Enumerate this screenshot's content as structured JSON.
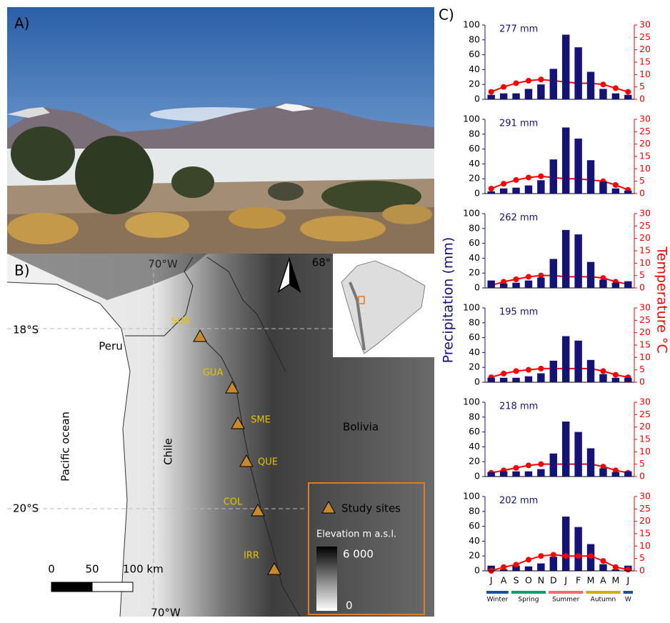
{
  "panels": {
    "a_label": "A)",
    "b_label": "B)",
    "c_label": "C)"
  },
  "map": {
    "countries": [
      "Peru",
      "Chile",
      "Bolivia"
    ],
    "ocean": "Pacific ocean",
    "lon_labels": [
      "70°W",
      "68°",
      "70°W"
    ],
    "lat_labels": [
      "18°S",
      "20°S"
    ],
    "sites": [
      "SUR",
      "GUA",
      "SME",
      "QUE",
      "COL",
      "IRR"
    ],
    "legend": {
      "sites": "Study sites",
      "elevation": "Elevation m a.s.l.",
      "max": "6 000",
      "min": "0"
    },
    "scale": [
      "0",
      "50",
      "100 km"
    ]
  },
  "panel_c": {
    "y_label": "Precipitation (mm)",
    "y2_label": "Temperature °C",
    "seasons": [
      {
        "label": "Winter",
        "color": "#1f4e9a"
      },
      {
        "label": "Spring",
        "color": "#1a9a6c"
      },
      {
        "label": "Summer",
        "color": "#e57373"
      },
      {
        "label": "Autumn",
        "color": "#c9b000"
      },
      {
        "label": "W",
        "color": "#1f4e9a"
      }
    ]
  },
  "chart_data": [
    {
      "type": "bar",
      "annotation": "277 mm",
      "ylim": [
        0,
        100
      ],
      "yticks": [
        0,
        20,
        40,
        60,
        80,
        100
      ],
      "y2lim": [
        0,
        30
      ],
      "y2ticks": [
        0,
        5,
        10,
        15,
        20,
        25,
        30
      ],
      "series": [
        {
          "color": "#15137a",
          "values": [
            6,
            8,
            8,
            14,
            20,
            41,
            87,
            70,
            37,
            14,
            8,
            6
          ]
        },
        {
          "type": "line",
          "axis": "y2",
          "color": "#ff0000",
          "values": [
            3,
            5,
            6.5,
            7.5,
            8,
            7.5,
            7,
            6.5,
            6.5,
            6,
            4.5,
            3
          ]
        }
      ]
    },
    {
      "type": "bar",
      "annotation": "291 mm",
      "ylim": [
        0,
        100
      ],
      "yticks": [
        0,
        20,
        40,
        60,
        80,
        100
      ],
      "y2lim": [
        0,
        30
      ],
      "y2ticks": [
        0,
        5,
        10,
        15,
        20,
        25,
        30
      ],
      "series": [
        {
          "color": "#15137a",
          "values": [
            3,
            7,
            8,
            11,
            18,
            46,
            89,
            74,
            45,
            16,
            7,
            4
          ]
        },
        {
          "type": "line",
          "axis": "y2",
          "color": "#ff0000",
          "values": [
            2,
            4,
            5.5,
            6.5,
            7,
            6.5,
            6,
            6,
            5.5,
            5,
            3.5,
            1.5
          ]
        }
      ]
    },
    {
      "type": "bar",
      "annotation": "262 mm",
      "ylim": [
        0,
        100
      ],
      "yticks": [
        0,
        20,
        40,
        60,
        80,
        100
      ],
      "y2lim": [
        0,
        30
      ],
      "y2ticks": [
        0,
        5,
        10,
        15,
        20,
        25,
        30
      ],
      "series": [
        {
          "color": "#15137a",
          "values": [
            10,
            6,
            7,
            10,
            14,
            39,
            78,
            72,
            35,
            11,
            7,
            9
          ]
        },
        {
          "type": "line",
          "axis": "y2",
          "color": "#ff0000",
          "values": [
            1,
            2.5,
            3.5,
            4.5,
            5,
            5,
            4.5,
            4.5,
            4.5,
            4,
            2.5,
            1.5
          ]
        }
      ]
    },
    {
      "type": "bar",
      "annotation": "195 mm",
      "ylim": [
        0,
        100
      ],
      "yticks": [
        0,
        20,
        40,
        60,
        80,
        100
      ],
      "y2lim": [
        0,
        30
      ],
      "y2ticks": [
        0,
        5,
        10,
        15,
        20,
        25,
        30
      ],
      "series": [
        {
          "color": "#15137a",
          "values": [
            6,
            6,
            6,
            8,
            12,
            29,
            62,
            56,
            30,
            11,
            6,
            6
          ]
        },
        {
          "type": "line",
          "axis": "y2",
          "color": "#ff0000",
          "values": [
            2,
            3.5,
            4.5,
            5,
            5.5,
            5.5,
            5.5,
            5.5,
            5.5,
            4.5,
            3,
            2
          ]
        }
      ]
    },
    {
      "type": "bar",
      "annotation": "218 mm",
      "ylim": [
        0,
        100
      ],
      "yticks": [
        0,
        20,
        40,
        60,
        80,
        100
      ],
      "y2lim": [
        0,
        30
      ],
      "y2ticks": [
        0,
        5,
        10,
        15,
        20,
        25,
        30
      ],
      "series": [
        {
          "color": "#15137a",
          "values": [
            6,
            7,
            7,
            7,
            10,
            31,
            74,
            60,
            38,
            11,
            6,
            7
          ]
        },
        {
          "type": "line",
          "axis": "y2",
          "color": "#ff0000",
          "values": [
            1.5,
            2.5,
            3.5,
            4.5,
            5,
            5,
            5,
            5,
            5,
            4,
            2.5,
            1.5
          ]
        }
      ]
    },
    {
      "type": "bar",
      "annotation": "202 mm",
      "ylim": [
        0,
        100
      ],
      "yticks": [
        0,
        20,
        40,
        60,
        80,
        100
      ],
      "y2lim": [
        0,
        30
      ],
      "y2ticks": [
        0,
        5,
        10,
        15,
        20,
        25,
        30
      ],
      "categories": [
        "J",
        "A",
        "S",
        "O",
        "N",
        "D",
        "J",
        "F",
        "M",
        "A",
        "M",
        "J"
      ],
      "series": [
        {
          "color": "#15137a",
          "values": [
            7,
            2,
            7,
            6,
            10,
            19,
            73,
            59,
            36,
            9,
            2,
            7
          ]
        },
        {
          "type": "line",
          "axis": "y2",
          "color": "#ff0000",
          "values": [
            0,
            1.5,
            2.5,
            4.5,
            6,
            6.5,
            6,
            6,
            6,
            4,
            1.5,
            0.5
          ]
        }
      ]
    }
  ]
}
